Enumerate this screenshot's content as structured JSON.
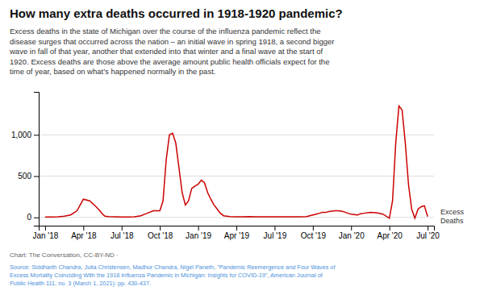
{
  "chart_data": {
    "type": "line",
    "title": "How many extra deaths occurred in 1918-1920 pandemic?",
    "subtitle": "Excess deaths in the state of Michigan over the course of the influenza pandemic reflect the\ndisease surges that occurred across the nation – an initial wave in spring 1918, a second bigger\nwave in fall of that year, another that extended into that winter and a final wave at the start of\n1920. Excess deaths are those above the average amount public health officials expect for the\ntime of year, based on what’s happened normally in the past.",
    "annotations": [
      "Excess\nDeaths",
      "Chart: The Conversation, CC-BY-ND ·",
      "Source: Siddharth Chandra, Julia Christensen, Madhur Chandra, Nigel Paneth, \"Pandemic Reemergence and Four Waves of\nExcess Mortality Coinciding With the 1918 Influenza Pandemic in Michigan: Insights for COVID-19\", American Journal of\nPublic Health 111, no. 3 (March 1, 2021): pp. 430-437."
    ],
    "color": "#cc0000",
    "grid": true,
    "x": [
      0,
      0.5,
      1,
      1.5,
      2,
      2.5,
      3,
      3.5,
      4,
      4.3,
      4.5,
      4.7,
      5,
      5.5,
      6,
      6.5,
      7,
      7.5,
      8,
      8.5,
      9,
      9.25,
      9.5,
      9.75,
      10,
      10.25,
      10.5,
      10.75,
      11,
      11.25,
      11.5,
      11.75,
      12,
      12.25,
      12.5,
      12.75,
      13,
      13.25,
      13.5,
      13.75,
      14,
      14.5,
      15,
      15.5,
      16,
      16.5,
      17,
      17.5,
      18,
      18.5,
      19,
      19.5,
      20,
      20.5,
      21,
      21.25,
      21.5,
      21.75,
      22,
      22.25,
      22.5,
      22.75,
      23,
      23.25,
      23.5,
      23.75,
      24,
      24.25,
      24.5,
      24.75,
      25,
      25.5,
      26,
      26.5,
      27,
      27.25,
      27.5,
      27.75,
      28,
      28.25,
      28.5,
      28.75,
      29,
      29.25,
      29.5,
      29.75,
      30
    ],
    "values": [
      5,
      5,
      8,
      15,
      30,
      80,
      220,
      200,
      130,
      80,
      40,
      15,
      10,
      8,
      5,
      5,
      8,
      20,
      50,
      80,
      80,
      200,
      700,
      1000,
      1020,
      900,
      600,
      300,
      150,
      200,
      350,
      380,
      400,
      450,
      420,
      300,
      220,
      150,
      100,
      50,
      20,
      10,
      8,
      8,
      10,
      8,
      8,
      8,
      8,
      8,
      8,
      8,
      8,
      10,
      30,
      40,
      50,
      60,
      60,
      70,
      75,
      80,
      80,
      75,
      65,
      50,
      40,
      35,
      30,
      45,
      50,
      60,
      55,
      40,
      -10,
      200,
      900,
      1350,
      1300,
      900,
      400,
      100,
      -10,
      100,
      130,
      140,
      10
    ],
    "xlim": [
      -0.5,
      30.5
    ],
    "xticks": [
      {
        "value": 0,
        "label": "Jan '18"
      },
      {
        "value": 3,
        "label": "Apr '18"
      },
      {
        "value": 6,
        "label": "Jul '18"
      },
      {
        "value": 9,
        "label": "Oct '18"
      },
      {
        "value": 12,
        "label": "Jan '19"
      },
      {
        "value": 15,
        "label": "Apr '19"
      },
      {
        "value": 18,
        "label": "Jul '19"
      },
      {
        "value": 21,
        "label": "Oct '19"
      },
      {
        "value": 24,
        "label": "Jan '20"
      },
      {
        "value": 27,
        "label": "Apr '20"
      },
      {
        "value": 30,
        "label": "Jul '20"
      }
    ],
    "ylim": [
      -100,
      1520
    ],
    "yticks": [
      0,
      500,
      {
        "value": 1000,
        "label": "1,000"
      }
    ]
  }
}
